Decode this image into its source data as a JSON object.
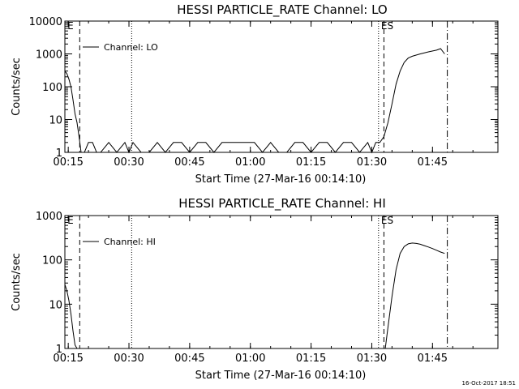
{
  "footer": {
    "timestamp": "16-Oct-2017 18:51"
  },
  "chart_data": [
    {
      "type": "line",
      "title": "HESSI PARTICLE_RATE Channel: LO",
      "xlabel": "Start Time (27-Mar-16 00:14:10)",
      "ylabel": "Counts/sec",
      "yscale": "log",
      "ylim": [
        1,
        10000
      ],
      "xlim_minutes_from_start": [
        0,
        107
      ],
      "x_ticks": [
        "00:15",
        "00:30",
        "00:45",
        "01:00",
        "01:15",
        "01:30",
        "01:45"
      ],
      "y_ticks": [
        "1",
        "10",
        "100",
        "1000",
        "10000"
      ],
      "grid": false,
      "legend": "top-left",
      "series": [
        {
          "name": "Channel: LO",
          "x": [
            "00:14:10",
            "00:14:40",
            "00:15:10",
            "00:15:40",
            "00:16:10",
            "00:16:40",
            "00:17:10",
            "00:17:40",
            "00:18:10",
            "00:18:40",
            "00:19:00",
            "00:20:00",
            "00:21:00",
            "00:22:00",
            "00:23:00",
            "00:25:00",
            "00:27:00",
            "00:29:00",
            "00:30:00",
            "00:31:00",
            "00:33:00",
            "00:35:00",
            "00:37:00",
            "00:39:00",
            "00:41:00",
            "00:43:00",
            "00:45:00",
            "00:47:00",
            "00:49:00",
            "00:51:00",
            "00:53:00",
            "00:55:00",
            "00:57:00",
            "00:59:00",
            "01:01:00",
            "01:03:00",
            "01:05:00",
            "01:07:00",
            "01:09:00",
            "01:11:00",
            "01:13:00",
            "01:15:00",
            "01:17:00",
            "01:19:00",
            "01:21:00",
            "01:23:00",
            "01:25:00",
            "01:27:00",
            "01:29:00",
            "01:30:00",
            "01:31:00",
            "01:32:00",
            "01:33:00",
            "01:34:00",
            "01:35:00",
            "01:36:00",
            "01:37:00",
            "01:38:00",
            "01:39:00",
            "01:40:00",
            "01:42:00",
            "01:44:00",
            "01:46:00",
            "01:47:00",
            "01:48:00"
          ],
          "y": [
            300,
            250,
            170,
            100,
            40,
            15,
            8,
            3,
            1,
            1,
            1,
            2,
            2,
            1,
            1,
            2,
            1,
            2,
            1,
            2,
            1,
            1,
            2,
            1,
            2,
            2,
            1,
            2,
            2,
            1,
            2,
            2,
            2,
            2,
            2,
            1,
            2,
            1,
            1,
            2,
            2,
            1,
            2,
            2,
            1,
            2,
            2,
            1,
            2,
            1,
            2,
            2,
            3,
            8,
            30,
            120,
            300,
            550,
            750,
            850,
            1000,
            1150,
            1300,
            1450,
            1000
          ]
        }
      ],
      "markers": [
        {
          "time": "00:17:50",
          "style": "dashed",
          "label": ""
        },
        {
          "time": "00:30:40",
          "style": "dotted",
          "label": ""
        },
        {
          "time": "01:31:40",
          "style": "dotted",
          "label": ""
        },
        {
          "time": "01:33:00",
          "style": "dashed",
          "label": ""
        },
        {
          "time": "01:48:40",
          "style": "dash-dot",
          "label": ""
        }
      ],
      "flags": [
        {
          "time": "00:15:00",
          "label": "E"
        },
        {
          "time": "01:32:30",
          "label": "ES"
        }
      ]
    },
    {
      "type": "line",
      "title": "HESSI PARTICLE_RATE Channel: HI",
      "xlabel": "Start Time (27-Mar-16 00:14:10)",
      "ylabel": "Counts/sec",
      "yscale": "log",
      "ylim": [
        1,
        1000
      ],
      "xlim_minutes_from_start": [
        0,
        107
      ],
      "x_ticks": [
        "00:15",
        "00:30",
        "00:45",
        "01:00",
        "01:15",
        "01:30",
        "01:45"
      ],
      "y_ticks": [
        "1",
        "10",
        "100",
        "1000"
      ],
      "grid": false,
      "legend": "top-left",
      "series": [
        {
          "name": "Channel: HI",
          "x": [
            "00:14:10",
            "00:14:40",
            "00:15:10",
            "00:15:40",
            "00:16:10",
            "00:16:40",
            "00:17:10",
            "01:33:20",
            "01:34:00",
            "01:35:00",
            "01:36:00",
            "01:37:00",
            "01:38:00",
            "01:39:00",
            "01:40:00",
            "01:41:00",
            "01:42:00",
            "01:43:00",
            "01:44:00",
            "01:45:00",
            "01:46:00",
            "01:47:00",
            "01:48:00"
          ],
          "y": [
            28,
            20,
            12,
            6,
            2.5,
            1.2,
            0.9,
            0.9,
            3,
            15,
            60,
            140,
            200,
            230,
            240,
            235,
            225,
            210,
            195,
            180,
            165,
            150,
            140
          ]
        }
      ],
      "markers": [
        {
          "time": "00:17:50",
          "style": "dashed",
          "label": ""
        },
        {
          "time": "00:30:40",
          "style": "dotted",
          "label": ""
        },
        {
          "time": "01:31:40",
          "style": "dotted",
          "label": ""
        },
        {
          "time": "01:33:00",
          "style": "dashed",
          "label": ""
        },
        {
          "time": "01:48:40",
          "style": "dash-dot",
          "label": ""
        }
      ],
      "flags": [
        {
          "time": "00:15:00",
          "label": "E"
        },
        {
          "time": "01:32:30",
          "label": "ES"
        }
      ]
    }
  ]
}
